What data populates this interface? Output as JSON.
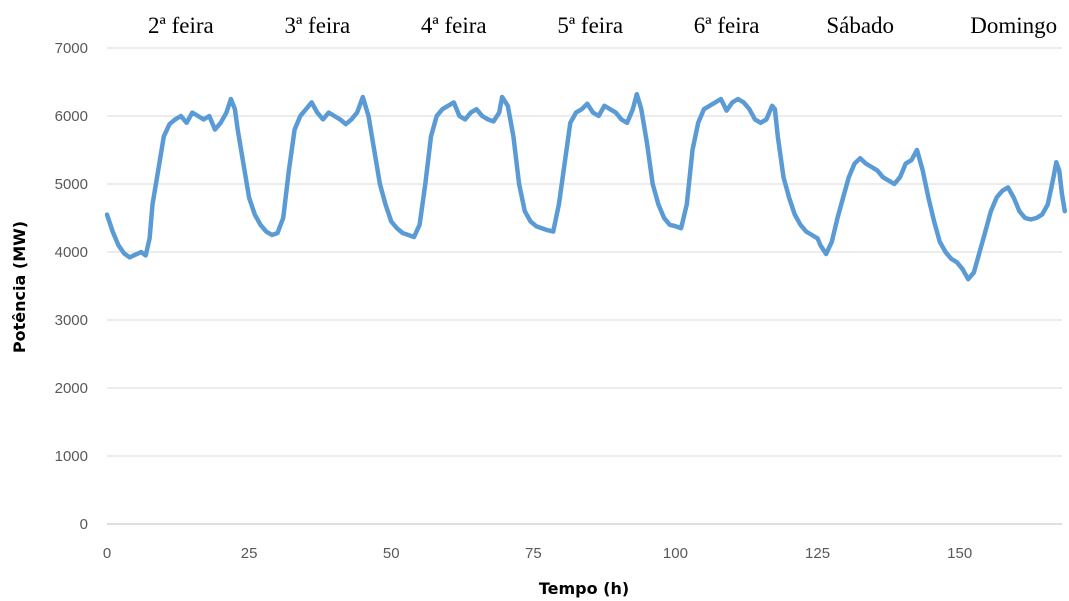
{
  "chart_data": {
    "type": "line",
    "xlabel": "Tempo (h)",
    "ylabel": "Potência (MW)",
    "xlim": [
      0,
      168
    ],
    "ylim": [
      0,
      7000
    ],
    "x_ticks": [
      0,
      25,
      50,
      75,
      100,
      125,
      150
    ],
    "y_ticks": [
      0,
      1000,
      2000,
      3000,
      4000,
      5000,
      6000,
      7000
    ],
    "grid": "horizontal",
    "legend": "none",
    "day_labels": [
      {
        "text": "2ª feira",
        "x_center": 13
      },
      {
        "text": "3ª feira",
        "x_center": 37
      },
      {
        "text": "4ª feira",
        "x_center": 61
      },
      {
        "text": "5ª feira",
        "x_center": 85
      },
      {
        "text": "6ª feira",
        "x_center": 109
      },
      {
        "text": "Sábado",
        "x_center": 132.5
      },
      {
        "text": "Domingo",
        "x_center": 159.5
      }
    ],
    "series": [
      {
        "color": "#5b9bd5",
        "points": [
          [
            0,
            4550
          ],
          [
            1,
            4300
          ],
          [
            2,
            4100
          ],
          [
            3,
            3980
          ],
          [
            4,
            3920
          ],
          [
            5,
            3960
          ],
          [
            6,
            4000
          ],
          [
            6.8,
            3950
          ],
          [
            7.5,
            4200
          ],
          [
            8,
            4700
          ],
          [
            9,
            5200
          ],
          [
            10,
            5700
          ],
          [
            11,
            5880
          ],
          [
            12,
            5950
          ],
          [
            13,
            6000
          ],
          [
            14,
            5900
          ],
          [
            15,
            6050
          ],
          [
            16,
            6000
          ],
          [
            17,
            5950
          ],
          [
            18,
            6000
          ],
          [
            19,
            5800
          ],
          [
            20,
            5900
          ],
          [
            21,
            6050
          ],
          [
            21.8,
            6250
          ],
          [
            22.5,
            6100
          ],
          [
            23,
            5800
          ],
          [
            24,
            5300
          ],
          [
            25,
            4800
          ],
          [
            26,
            4550
          ],
          [
            27,
            4400
          ],
          [
            28,
            4300
          ],
          [
            29,
            4250
          ],
          [
            30,
            4280
          ],
          [
            31,
            4500
          ],
          [
            32,
            5200
          ],
          [
            33,
            5800
          ],
          [
            34,
            6000
          ],
          [
            35,
            6100
          ],
          [
            36,
            6200
          ],
          [
            37,
            6050
          ],
          [
            38,
            5950
          ],
          [
            39,
            6050
          ],
          [
            40,
            6000
          ],
          [
            41,
            5950
          ],
          [
            42,
            5880
          ],
          [
            43,
            5950
          ],
          [
            44,
            6050
          ],
          [
            45,
            6280
          ],
          [
            46,
            6000
          ],
          [
            47,
            5500
          ],
          [
            48,
            5000
          ],
          [
            49,
            4700
          ],
          [
            50,
            4450
          ],
          [
            51,
            4350
          ],
          [
            52,
            4280
          ],
          [
            53,
            4250
          ],
          [
            54,
            4220
          ],
          [
            55,
            4400
          ],
          [
            56,
            5000
          ],
          [
            57,
            5700
          ],
          [
            58,
            6000
          ],
          [
            59,
            6100
          ],
          [
            60,
            6150
          ],
          [
            61,
            6200
          ],
          [
            62,
            6000
          ],
          [
            63,
            5950
          ],
          [
            64,
            6050
          ],
          [
            65,
            6100
          ],
          [
            66,
            6000
          ],
          [
            67,
            5950
          ],
          [
            68,
            5920
          ],
          [
            69,
            6050
          ],
          [
            69.5,
            6280
          ],
          [
            70.5,
            6150
          ],
          [
            71.5,
            5700
          ],
          [
            72.5,
            5000
          ],
          [
            73.5,
            4600
          ],
          [
            74.5,
            4450
          ],
          [
            75.5,
            4380
          ],
          [
            76.5,
            4350
          ],
          [
            77.5,
            4320
          ],
          [
            78.5,
            4300
          ],
          [
            79.5,
            4700
          ],
          [
            80.5,
            5300
          ],
          [
            81.5,
            5900
          ],
          [
            82.5,
            6050
          ],
          [
            83.5,
            6100
          ],
          [
            84.5,
            6180
          ],
          [
            85.5,
            6050
          ],
          [
            86.5,
            6000
          ],
          [
            87.5,
            6150
          ],
          [
            88.5,
            6100
          ],
          [
            89.5,
            6050
          ],
          [
            90.5,
            5950
          ],
          [
            91.5,
            5900
          ],
          [
            92.5,
            6100
          ],
          [
            93.2,
            6320
          ],
          [
            94,
            6100
          ],
          [
            95,
            5600
          ],
          [
            96,
            5000
          ],
          [
            97,
            4700
          ],
          [
            98,
            4500
          ],
          [
            99,
            4400
          ],
          [
            100,
            4380
          ],
          [
            101,
            4350
          ],
          [
            102,
            4700
          ],
          [
            103,
            5500
          ],
          [
            104,
            5900
          ],
          [
            105,
            6100
          ],
          [
            106,
            6150
          ],
          [
            107,
            6200
          ],
          [
            108,
            6250
          ],
          [
            109,
            6080
          ],
          [
            110,
            6200
          ],
          [
            111,
            6250
          ],
          [
            112,
            6200
          ],
          [
            113,
            6100
          ],
          [
            114,
            5950
          ],
          [
            115,
            5900
          ],
          [
            116,
            5950
          ],
          [
            117,
            6150
          ],
          [
            117.5,
            6100
          ],
          [
            118,
            5700
          ],
          [
            119,
            5100
          ],
          [
            120,
            4800
          ],
          [
            121,
            4550
          ],
          [
            122,
            4400
          ],
          [
            123,
            4300
          ],
          [
            124,
            4250
          ],
          [
            125,
            4200
          ],
          [
            125.5,
            4100
          ],
          [
            126.5,
            3970
          ],
          [
            127.5,
            4150
          ],
          [
            128.5,
            4500
          ],
          [
            129.5,
            4800
          ],
          [
            130.5,
            5100
          ],
          [
            131.5,
            5300
          ],
          [
            132.5,
            5380
          ],
          [
            133.5,
            5300
          ],
          [
            134.5,
            5250
          ],
          [
            135.5,
            5200
          ],
          [
            136.5,
            5100
          ],
          [
            137.5,
            5050
          ],
          [
            138.5,
            5000
          ],
          [
            139.5,
            5100
          ],
          [
            140.5,
            5300
          ],
          [
            141.5,
            5350
          ],
          [
            142.5,
            5500
          ],
          [
            143.5,
            5200
          ],
          [
            144.5,
            4800
          ],
          [
            145.5,
            4450
          ],
          [
            146.5,
            4150
          ],
          [
            147.5,
            4000
          ],
          [
            148.5,
            3900
          ],
          [
            149.5,
            3850
          ],
          [
            150.5,
            3750
          ],
          [
            151.5,
            3600
          ],
          [
            152.5,
            3700
          ],
          [
            153.5,
            4000
          ],
          [
            154.5,
            4300
          ],
          [
            155.5,
            4600
          ],
          [
            156.5,
            4800
          ],
          [
            157.5,
            4900
          ],
          [
            158.5,
            4950
          ],
          [
            159.5,
            4800
          ],
          [
            160.5,
            4600
          ],
          [
            161.5,
            4500
          ],
          [
            162.5,
            4480
          ],
          [
            163.5,
            4500
          ],
          [
            164.5,
            4550
          ],
          [
            165.5,
            4700
          ],
          [
            166.5,
            5100
          ],
          [
            167,
            5320
          ],
          [
            167.5,
            5200
          ],
          [
            168,
            4850
          ],
          [
            168.5,
            4600
          ]
        ]
      }
    ]
  }
}
